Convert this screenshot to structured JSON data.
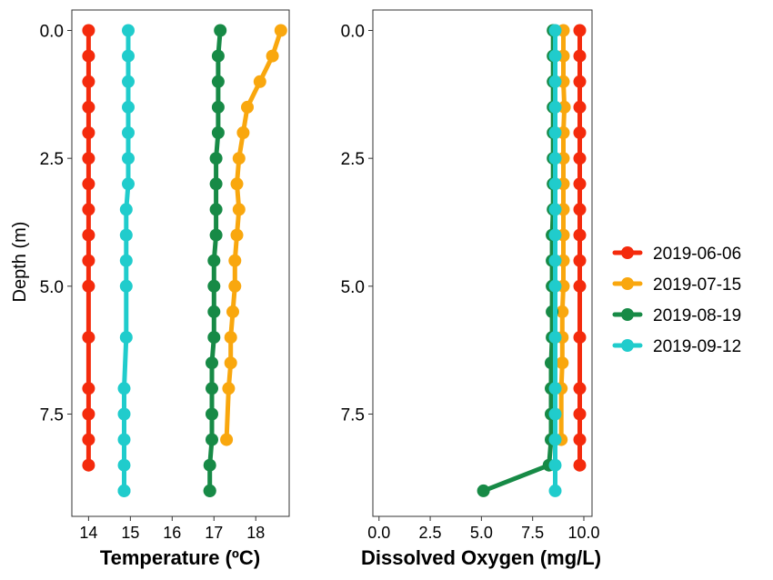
{
  "chart_data": {
    "type": "line",
    "shared_ylabel": "Depth (m)",
    "y_inverted": true,
    "ylim": [
      -0.4,
      9.5
    ],
    "yticks": [
      0.0,
      2.5,
      5.0,
      7.5
    ],
    "ytick_labels": [
      "0.0",
      "2.5",
      "5.0",
      "7.5"
    ],
    "legend_position": "right",
    "legend": [
      {
        "label": "2019-06-06",
        "color": "#f42a0c"
      },
      {
        "label": "2019-07-15",
        "color": "#f9a70e"
      },
      {
        "label": "2019-08-19",
        "color": "#178a46"
      },
      {
        "label": "2019-09-12",
        "color": "#20cccc"
      }
    ],
    "panels": [
      {
        "xlabel": "Temperature (ºC)",
        "xlim": [
          13.6,
          18.8
        ],
        "xticks": [
          14,
          15,
          16,
          17,
          18
        ],
        "xtick_labels": [
          "14",
          "15",
          "16",
          "17",
          "18"
        ],
        "series": [
          {
            "name": "2019-06-06",
            "color": "#f42a0c",
            "x": [
              14.0,
              14.0,
              14.0,
              14.0,
              14.0,
              14.0,
              14.0,
              14.0,
              14.0,
              14.0,
              14.0,
              14.0,
              14.0,
              14.0,
              14.0,
              14.0
            ],
            "y": [
              0.0,
              0.5,
              1.0,
              1.5,
              2.0,
              2.5,
              3.0,
              3.5,
              4.0,
              4.5,
              5.0,
              6.0,
              7.0,
              7.5,
              8.0,
              8.5
            ]
          },
          {
            "name": "2019-07-15",
            "color": "#f9a70e",
            "x": [
              18.6,
              18.4,
              18.1,
              17.8,
              17.7,
              17.6,
              17.55,
              17.6,
              17.55,
              17.5,
              17.5,
              17.45,
              17.4,
              17.4,
              17.35,
              17.3
            ],
            "y": [
              0.0,
              0.5,
              1.0,
              1.5,
              2.0,
              2.5,
              3.0,
              3.5,
              4.0,
              4.5,
              5.0,
              5.5,
              6.0,
              6.5,
              7.0,
              8.0
            ]
          },
          {
            "name": "2019-08-19",
            "color": "#178a46",
            "x": [
              17.15,
              17.1,
              17.1,
              17.1,
              17.1,
              17.05,
              17.05,
              17.05,
              17.05,
              17.0,
              17.0,
              17.0,
              17.0,
              16.95,
              16.95,
              16.95,
              16.95,
              16.9,
              16.9,
              16.9
            ],
            "y": [
              0.0,
              0.5,
              1.0,
              1.5,
              2.0,
              2.5,
              3.0,
              3.5,
              4.0,
              4.5,
              5.0,
              5.5,
              6.0,
              6.5,
              7.0,
              7.5,
              8.0,
              8.5,
              9.0,
              9.0
            ]
          },
          {
            "name": "2019-09-12",
            "color": "#20cccc",
            "x": [
              14.95,
              14.95,
              14.95,
              14.95,
              14.95,
              14.95,
              14.95,
              14.9,
              14.9,
              14.9,
              14.9,
              14.9,
              14.85,
              14.85,
              14.85,
              14.85,
              14.85,
              14.85
            ],
            "y": [
              0.0,
              0.5,
              1.0,
              1.5,
              2.0,
              2.5,
              3.0,
              3.5,
              4.0,
              4.5,
              5.0,
              6.0,
              7.0,
              7.5,
              8.0,
              8.5,
              9.0,
              9.0
            ]
          }
        ]
      },
      {
        "xlabel": "Dissolved Oxygen (mg/L)",
        "xlim": [
          -0.3,
          10.4
        ],
        "xticks": [
          0.0,
          2.5,
          5.0,
          7.5,
          10.0
        ],
        "xtick_labels": [
          "0.0",
          "2.5",
          "5.0",
          "7.5",
          "10.0"
        ],
        "series": [
          {
            "name": "2019-06-06",
            "color": "#f42a0c",
            "x": [
              9.8,
              9.8,
              9.8,
              9.8,
              9.8,
              9.8,
              9.8,
              9.8,
              9.8,
              9.8,
              9.8,
              9.8,
              9.8,
              9.8,
              9.8,
              9.8
            ],
            "y": [
              0.0,
              0.5,
              1.0,
              1.5,
              2.0,
              2.5,
              3.0,
              3.5,
              4.0,
              4.5,
              5.0,
              6.0,
              7.0,
              7.5,
              8.0,
              8.5
            ]
          },
          {
            "name": "2019-07-15",
            "color": "#f9a70e",
            "x": [
              9.0,
              9.0,
              9.0,
              9.05,
              9.0,
              9.0,
              9.0,
              9.0,
              9.0,
              9.0,
              9.0,
              8.95,
              8.95,
              8.95,
              8.9,
              8.9
            ],
            "y": [
              0.0,
              0.5,
              1.0,
              1.5,
              2.0,
              2.5,
              3.0,
              3.5,
              4.0,
              4.5,
              5.0,
              5.5,
              6.0,
              6.5,
              7.0,
              8.0
            ]
          },
          {
            "name": "2019-08-19",
            "color": "#178a46",
            "x": [
              8.5,
              8.5,
              8.5,
              8.5,
              8.5,
              8.5,
              8.5,
              8.5,
              8.45,
              8.45,
              8.45,
              8.45,
              8.45,
              8.4,
              8.4,
              8.4,
              8.4,
              8.3,
              5.1
            ],
            "y": [
              0.0,
              0.5,
              1.0,
              1.5,
              2.0,
              2.5,
              3.0,
              3.5,
              4.0,
              4.5,
              5.0,
              5.5,
              6.0,
              6.5,
              7.0,
              7.5,
              8.0,
              8.5,
              9.0
            ]
          },
          {
            "name": "2019-09-12",
            "color": "#20cccc",
            "x": [
              8.6,
              8.6,
              8.6,
              8.6,
              8.6,
              8.6,
              8.6,
              8.6,
              8.6,
              8.6,
              8.6,
              8.6,
              8.6,
              8.6,
              8.6,
              8.6,
              8.6
            ],
            "y": [
              0.0,
              0.5,
              1.0,
              1.5,
              2.0,
              2.5,
              3.0,
              3.5,
              4.0,
              4.5,
              5.0,
              6.0,
              7.0,
              7.5,
              8.0,
              8.5,
              9.0
            ]
          }
        ]
      }
    ]
  }
}
